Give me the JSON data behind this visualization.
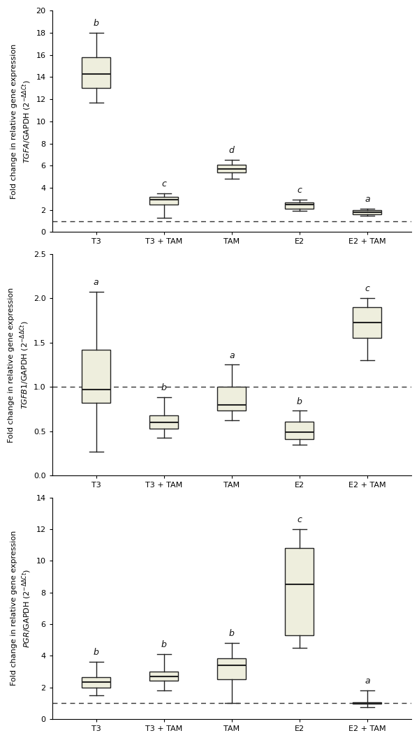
{
  "panels": [
    {
      "ylabel_line1": "Fold change in relative gene expression",
      "ylabel_line2_italic": "TGFA",
      "ylabel_line2_rest": "/GAPDH (2",
      "ylabel_sup": "−ΔΔCt",
      "ylim": [
        0,
        20
      ],
      "yticks": [
        0,
        2,
        4,
        6,
        8,
        10,
        12,
        14,
        16,
        18,
        20
      ],
      "dashed_line": 1,
      "groups": [
        "T3",
        "T3 + TAM",
        "TAM",
        "E2",
        "E2 + TAM"
      ],
      "boxes": [
        {
          "q1": 13.0,
          "median": 14.3,
          "q3": 15.8,
          "whislo": 11.7,
          "whishi": 18.0,
          "label": "b"
        },
        {
          "q1": 2.5,
          "median": 2.9,
          "q3": 3.2,
          "whislo": 1.3,
          "whishi": 3.5,
          "label": "c"
        },
        {
          "q1": 5.4,
          "median": 5.7,
          "q3": 6.1,
          "whislo": 4.8,
          "whishi": 6.5,
          "label": "d"
        },
        {
          "q1": 2.1,
          "median": 2.5,
          "q3": 2.7,
          "whislo": 1.9,
          "whishi": 2.9,
          "label": "c"
        },
        {
          "q1": 1.6,
          "median": 1.8,
          "q3": 2.0,
          "whislo": 1.5,
          "whishi": 2.1,
          "label": "a"
        }
      ]
    },
    {
      "ylabel_line1": "Fold change in relative gene expression",
      "ylabel_line2_italic": "TGFB1",
      "ylabel_line2_rest": "/GAPDH (2",
      "ylabel_sup": "−ΔΔCt",
      "ylim": [
        0,
        2.5
      ],
      "yticks": [
        0,
        0.5,
        1.0,
        1.5,
        2.0,
        2.5
      ],
      "dashed_line": 1,
      "groups": [
        "T3",
        "T3 + TAM",
        "TAM",
        "E2",
        "E2 + TAM"
      ],
      "boxes": [
        {
          "q1": 0.82,
          "median": 0.97,
          "q3": 1.42,
          "whislo": 0.27,
          "whishi": 2.07,
          "label": "a"
        },
        {
          "q1": 0.53,
          "median": 0.6,
          "q3": 0.68,
          "whislo": 0.43,
          "whishi": 0.88,
          "label": "b"
        },
        {
          "q1": 0.73,
          "median": 0.8,
          "q3": 1.0,
          "whislo": 0.62,
          "whishi": 1.25,
          "label": "a"
        },
        {
          "q1": 0.41,
          "median": 0.49,
          "q3": 0.61,
          "whislo": 0.35,
          "whishi": 0.73,
          "label": "b"
        },
        {
          "q1": 1.55,
          "median": 1.73,
          "q3": 1.9,
          "whislo": 1.3,
          "whishi": 2.0,
          "label": "c"
        }
      ]
    },
    {
      "ylabel_line1": "Fold change in relative gene expression",
      "ylabel_line2_italic": "PGR",
      "ylabel_line2_rest": "/GAPDH (2",
      "ylabel_sup": "−ΔΔCt",
      "ylim": [
        0,
        14
      ],
      "yticks": [
        0,
        2,
        4,
        6,
        8,
        10,
        12,
        14
      ],
      "dashed_line": 1,
      "groups": [
        "T3",
        "T3 + TAM",
        "TAM",
        "E2",
        "E2 + TAM"
      ],
      "boxes": [
        {
          "q1": 2.0,
          "median": 2.35,
          "q3": 2.65,
          "whislo": 1.5,
          "whishi": 3.6,
          "label": "b"
        },
        {
          "q1": 2.4,
          "median": 2.7,
          "q3": 3.0,
          "whislo": 1.8,
          "whishi": 4.1,
          "label": "b"
        },
        {
          "q1": 2.5,
          "median": 3.4,
          "q3": 3.85,
          "whislo": 1.0,
          "whishi": 4.8,
          "label": "b"
        },
        {
          "q1": 5.3,
          "median": 8.5,
          "q3": 10.8,
          "whislo": 4.5,
          "whishi": 12.0,
          "label": "c"
        },
        {
          "q1": 0.95,
          "median": 1.0,
          "q3": 1.07,
          "whislo": 0.75,
          "whishi": 1.8,
          "label": "a"
        }
      ]
    }
  ],
  "box_facecolor": "#eeeedd",
  "box_edgecolor": "#222222",
  "whisker_color": "#222222",
  "median_color": "#222222",
  "dashed_color": "#333333",
  "label_fontsize": 8.0,
  "tick_fontsize": 8.0,
  "letter_fontsize": 9.0,
  "background_color": "#ffffff"
}
